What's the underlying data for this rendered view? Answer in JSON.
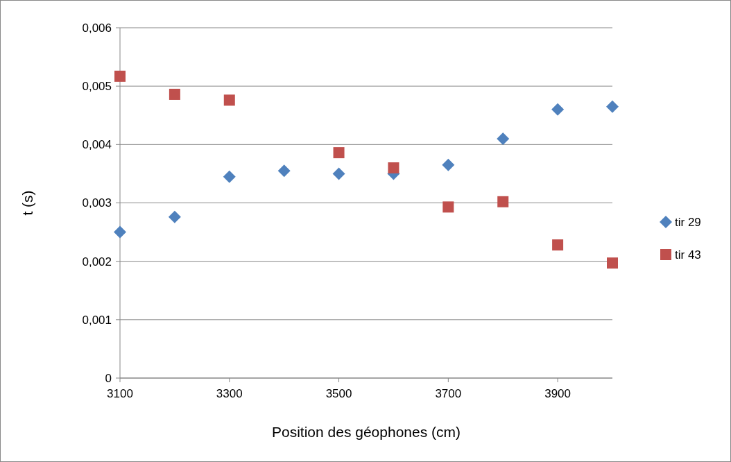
{
  "chart_data": {
    "type": "scatter",
    "xlabel": "Position des géophones (cm)",
    "ylabel": "t (s)",
    "xlim": [
      3100,
      4000
    ],
    "xticks": [
      3100,
      3300,
      3500,
      3700,
      3900
    ],
    "ylim": [
      0,
      0.006
    ],
    "yticks": [
      {
        "value": 0,
        "label": "0"
      },
      {
        "value": 0.001,
        "label": "0,001"
      },
      {
        "value": 0.002,
        "label": "0,002"
      },
      {
        "value": 0.003,
        "label": "0,003"
      },
      {
        "value": 0.004,
        "label": "0,004"
      },
      {
        "value": 0.005,
        "label": "0,005"
      },
      {
        "value": 0.006,
        "label": "0,006"
      }
    ],
    "grid": "y",
    "legend": "right",
    "series": [
      {
        "name": "tir 29",
        "color": "#4f81bd",
        "marker": "diamond",
        "x": [
          3100,
          3200,
          3300,
          3400,
          3500,
          3600,
          3700,
          3800,
          3900,
          4000
        ],
        "values": [
          0.0025,
          0.00276,
          0.00345,
          0.00355,
          0.0035,
          0.0035,
          0.00365,
          0.0041,
          0.0046,
          0.00465
        ]
      },
      {
        "name": "tir 43",
        "color": "#c0504d",
        "marker": "square",
        "x": [
          3100,
          3200,
          3300,
          3500,
          3600,
          3700,
          3800,
          3900,
          4000
        ],
        "values": [
          0.00517,
          0.00486,
          0.00476,
          0.00386,
          0.0036,
          0.00293,
          0.00302,
          0.00228,
          0.00197
        ]
      }
    ]
  }
}
